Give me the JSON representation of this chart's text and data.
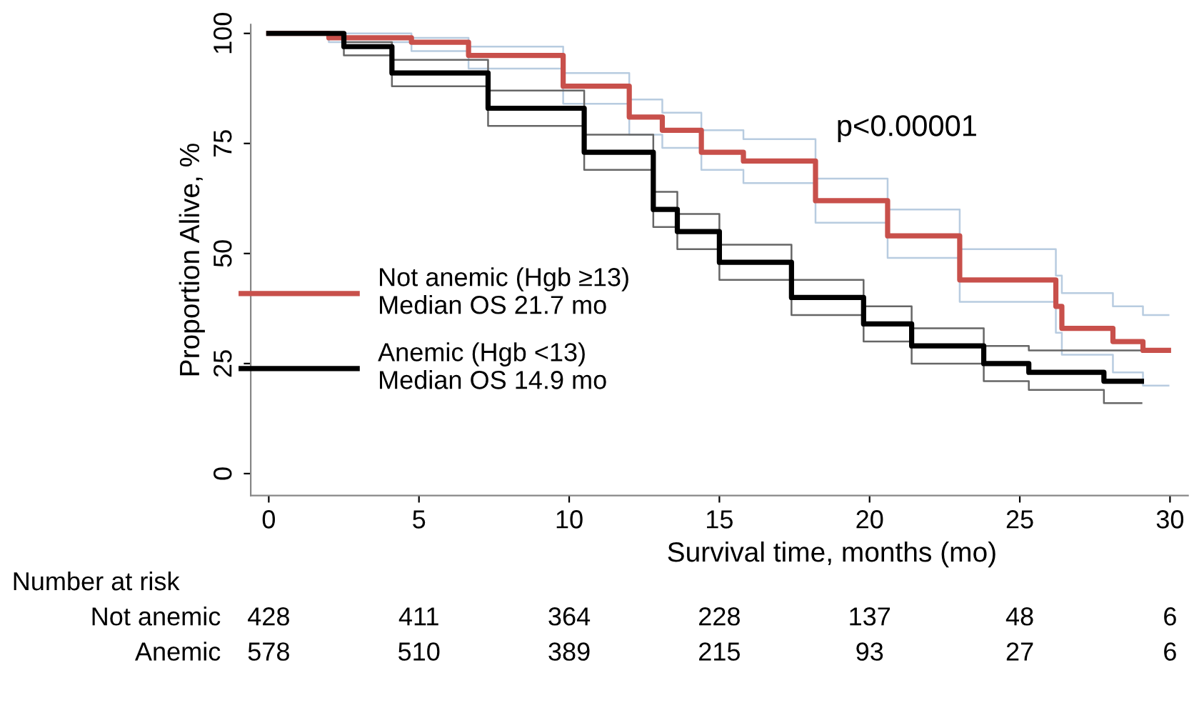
{
  "chart_data": {
    "type": "step",
    "xlabel": "Survival time, months (mo)",
    "ylabel": "Proportion Alive, %",
    "xlim": [
      -0.6,
      30.6
    ],
    "ylim": [
      -5,
      102
    ],
    "xticks": [
      0,
      5,
      10,
      15,
      20,
      25,
      30
    ],
    "yticks": [
      0,
      25,
      50,
      75,
      100
    ],
    "grid": false,
    "legend": "left",
    "line_style": "solid",
    "series": [
      {
        "color": "#b8cce0",
        "x": [
          0,
          2,
          4.75,
          6.65,
          9.8,
          12.0,
          13.1,
          14.4,
          15.8,
          18.2,
          20.6,
          23.0,
          26.2,
          26.4,
          28.1,
          29.1,
          29.95
        ],
        "values": [
          100,
          100,
          99,
          97,
          91,
          85,
          82,
          78,
          76,
          67,
          60,
          51,
          45,
          41,
          38,
          36,
          36
        ]
      },
      {
        "color": "#b8cce0",
        "x": [
          0,
          2,
          4.75,
          6.65,
          9.8,
          12.0,
          13.1,
          14.4,
          15.8,
          18.2,
          20.6,
          23.0,
          26.2,
          26.4,
          28.1,
          29.1,
          29.95
        ],
        "values": [
          100,
          98,
          96,
          92,
          84,
          77,
          74,
          69,
          66,
          57,
          49,
          39,
          32,
          27,
          23,
          20,
          20
        ]
      },
      {
        "color": "#666666",
        "x": [
          0,
          2.5,
          4.1,
          7.3,
          10.5,
          12.8,
          13.6,
          15.0,
          17.4,
          19.8,
          21.4,
          23.8,
          25.3,
          27.7,
          27.8,
          29.05
        ],
        "values": [
          100,
          98,
          94,
          87,
          77,
          64,
          59,
          52,
          44,
          38,
          33,
          29,
          28,
          28,
          28,
          28
        ]
      },
      {
        "color": "#666666",
        "x": [
          0,
          2.5,
          4.1,
          7.3,
          10.5,
          12.8,
          13.6,
          15.0,
          17.4,
          19.8,
          21.4,
          23.8,
          25.3,
          27.7,
          27.8,
          29.05
        ],
        "values": [
          100,
          95,
          88,
          79,
          69,
          56,
          51,
          44,
          36,
          30,
          25,
          21,
          19,
          19,
          16,
          16
        ]
      },
      {
        "name": "Not anemic (Hgb ≥13)\nMedian OS 21.7 mo",
        "color": "#c8504b",
        "x": [
          0,
          2,
          4.75,
          6.65,
          9.8,
          12.0,
          13.1,
          14.4,
          15.8,
          18.2,
          20.6,
          23.0,
          26.2,
          26.4,
          28.1,
          29.1,
          29.95
        ],
        "values": [
          100,
          99,
          98,
          95,
          88,
          81,
          78,
          73,
          71,
          62,
          54,
          44,
          38,
          33,
          30,
          28,
          28
        ]
      },
      {
        "name": "Anemic (Hgb <13)\nMedian OS 14.9 mo",
        "color": "#000000",
        "x": [
          0,
          2.5,
          4.1,
          7.3,
          10.5,
          12.8,
          13.6,
          15.0,
          17.4,
          19.8,
          21.4,
          23.8,
          25.3,
          27.7,
          27.8,
          29.05
        ],
        "values": [
          100,
          97,
          91,
          83,
          73,
          60,
          55,
          48,
          40,
          34,
          29,
          25,
          23,
          23,
          21,
          21
        ]
      }
    ],
    "annotations": [
      "p<0.00001",
      "Number at risk",
      "Not anemic",
      "428",
      "411",
      "364",
      "228",
      "137",
      "48",
      "6",
      "Anemic",
      "578",
      "510",
      "389",
      "215",
      "93",
      "27",
      "6"
    ]
  }
}
